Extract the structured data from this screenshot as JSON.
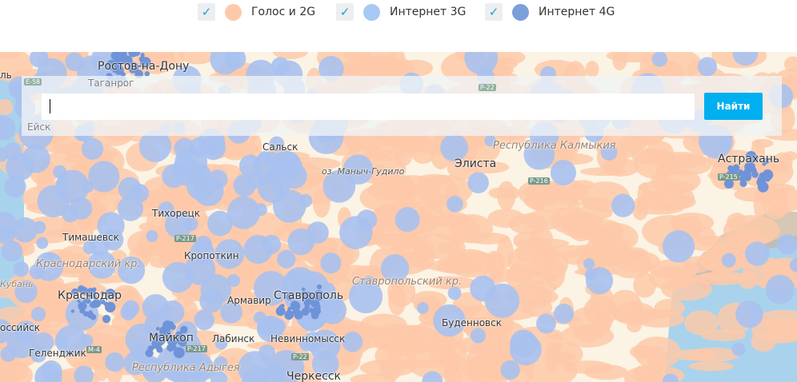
{
  "legend": {
    "items": [
      {
        "label": "Голос и 2G",
        "checked": true,
        "color": "#fdc9a9"
      },
      {
        "label": "Интернет 3G",
        "checked": true,
        "color": "#a8c8f5"
      },
      {
        "label": "Интернет 4G",
        "checked": true,
        "color": "#7b9fd9"
      }
    ],
    "check_icon": "checkmark-icon"
  },
  "search": {
    "value": "",
    "button_label": "Найти"
  },
  "colors": {
    "land": "#fbf3e4",
    "sea": "#a9d3ec",
    "voice_2g": "#fdc9a9",
    "internet_3g": "#a8c1ee",
    "internet_4g": "#6f93d8",
    "accent": "#00aff0"
  },
  "map": {
    "cities": [
      "Ростов-на-Дону",
      "Таганрог",
      "Ейск",
      "Сальск",
      "оз. Маныч-Гудило",
      "Элиста",
      "Астрахань",
      "Тихорецк",
      "Тимашевск",
      "Кропоткин",
      "Кубань",
      "Краснодар",
      "Армавир",
      "Ставрополь",
      "Майкоп",
      "Лабинск",
      "Невинномысск",
      "Геленджик",
      "оссийск",
      "Буденновск",
      "Черкесск",
      "ль"
    ],
    "regions": [
      "Республика Калмыкия",
      "Краснодарский кр.",
      "Ставропольский кр.",
      "Республика Адыгея"
    ],
    "roads": [
      "E-58",
      "P-22",
      "M-4",
      "P-217",
      "P-216",
      "P-215",
      "P-217",
      "M-4",
      "P-217",
      "P-22"
    ]
  }
}
